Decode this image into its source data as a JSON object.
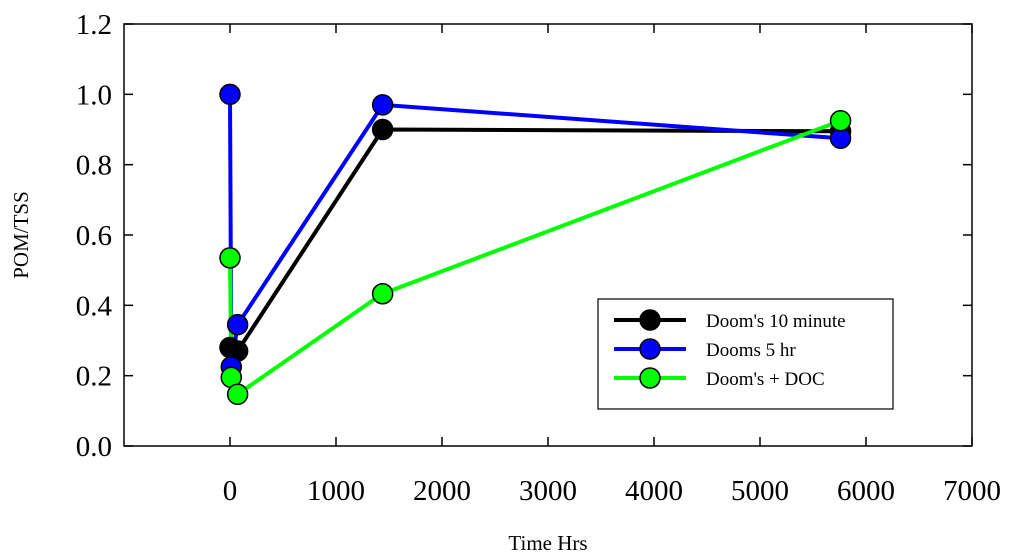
{
  "chart_data": {
    "type": "line",
    "title": "",
    "xlabel": "Time Hrs",
    "ylabel": "POM/TSS",
    "xlim": [
      -1000,
      7000
    ],
    "ylim": [
      0,
      1.2
    ],
    "xticks": [
      0,
      1000,
      2000,
      3000,
      4000,
      5000,
      6000,
      7000
    ],
    "xtick_labels": [
      "0",
      "1000",
      "2000",
      "3000",
      "4000",
      "5000",
      "6000",
      "7000"
    ],
    "yticks": [
      0,
      0.2,
      0.4,
      0.6,
      0.8,
      1.0,
      1.2
    ],
    "ytick_labels": [
      "0.0",
      "0.2",
      "0.4",
      "0.6",
      "0.8",
      "1.0",
      "1.2"
    ],
    "grid": false,
    "legend_position": "lower-right",
    "series": [
      {
        "name": "Doom's 10 minute",
        "color": "#000000",
        "x": [
          0,
          72,
          1440,
          5760
        ],
        "y": [
          0.28,
          0.27,
          0.9,
          0.895
        ]
      },
      {
        "name": "Dooms 5 hr",
        "color": "#0000ff",
        "x": [
          0,
          12,
          72,
          1440,
          5760
        ],
        "y": [
          1.0,
          0.225,
          0.345,
          0.97,
          0.875
        ]
      },
      {
        "name": "Doom's + DOC",
        "color": "#00ff00",
        "x": [
          0,
          12,
          72,
          1440,
          5760
        ],
        "y": [
          0.535,
          0.195,
          0.147,
          0.433,
          0.925
        ]
      }
    ]
  }
}
